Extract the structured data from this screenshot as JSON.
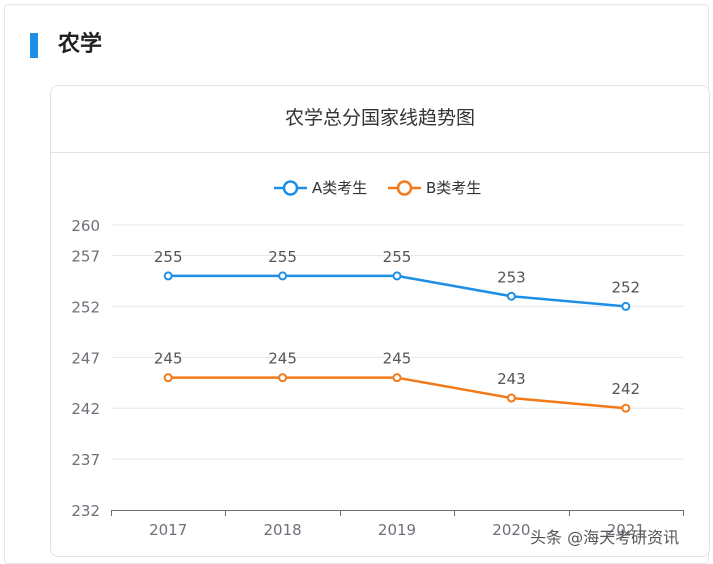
{
  "section": {
    "title": "农学"
  },
  "card": {
    "title": "农学总分国家线趋势图"
  },
  "watermark": "头条 @海天考研资讯",
  "chart_data": {
    "type": "line",
    "categories": [
      "2017",
      "2018",
      "2019",
      "2020",
      "2021"
    ],
    "series": [
      {
        "name": "A类考生",
        "values": [
          255,
          255,
          255,
          253,
          252
        ],
        "color": "#1f8fe6"
      },
      {
        "name": "B类考生",
        "values": [
          245,
          245,
          245,
          243,
          242
        ],
        "color": "#f27a1a"
      }
    ],
    "yticks": [
      232,
      237,
      242,
      247,
      252,
      257,
      260
    ],
    "ylim": [
      232,
      260
    ],
    "legend_position": "top-center",
    "data_labels": true,
    "grid": true
  }
}
